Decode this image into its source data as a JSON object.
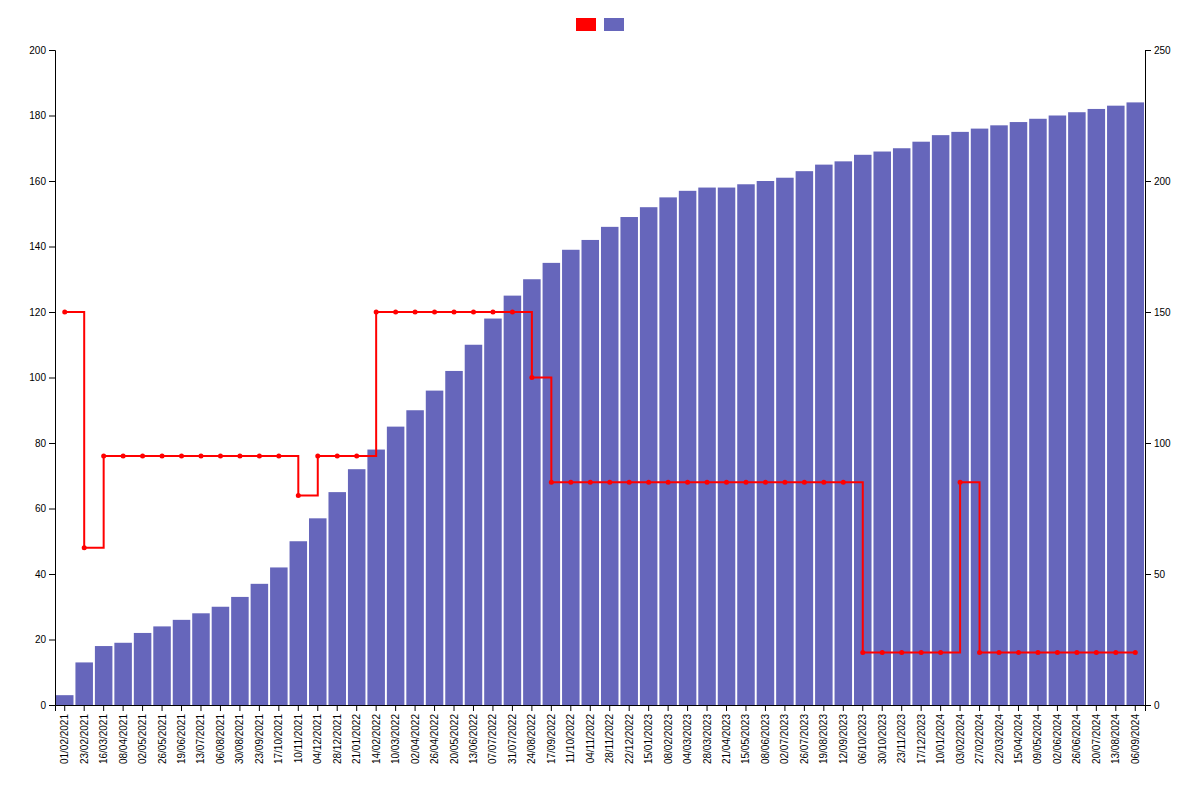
{
  "chart_data": {
    "type": "bar",
    "categories": [
      "01/02/2021",
      "23/02/2021",
      "16/03/2021",
      "08/04/2021",
      "02/05/2021",
      "26/05/2021",
      "19/06/2021",
      "13/07/2021",
      "06/08/2021",
      "30/08/2021",
      "23/09/2021",
      "17/10/2021",
      "10/11/2021",
      "04/12/2021",
      "28/12/2021",
      "21/01/2022",
      "14/02/2022",
      "10/03/2022",
      "02/04/2022",
      "26/04/2022",
      "20/05/2022",
      "13/06/2022",
      "07/07/2022",
      "31/07/2022",
      "24/08/2022",
      "17/09/2022",
      "11/10/2022",
      "04/11/2022",
      "28/11/2022",
      "22/12/2022",
      "15/01/2023",
      "08/02/2023",
      "04/03/2023",
      "28/03/2023",
      "21/04/2023",
      "15/05/2023",
      "08/06/2023",
      "02/07/2023",
      "26/07/2023",
      "19/08/2023",
      "12/09/2023",
      "06/10/2023",
      "30/10/2023",
      "23/11/2023",
      "17/12/2023",
      "10/01/2024",
      "03/02/2024",
      "27/02/2024",
      "22/03/2024",
      "15/04/2024",
      "09/05/2024",
      "02/06/2024",
      "26/06/2024",
      "20/07/2024",
      "13/08/2024",
      "06/09/2024"
    ],
    "series": [
      {
        "type": "bar",
        "color": "#6666bb",
        "values": [
          3,
          13,
          18,
          19,
          22,
          24,
          26,
          28,
          30,
          33,
          37,
          42,
          50,
          57,
          65,
          72,
          78,
          85,
          90,
          96,
          102,
          110,
          118,
          125,
          130,
          135,
          139,
          142,
          146,
          149,
          152,
          155,
          157,
          158,
          158,
          159,
          160,
          161,
          163,
          165,
          166,
          168,
          169,
          170,
          172,
          174,
          175,
          176,
          177,
          178,
          179,
          180,
          181,
          182,
          183,
          184
        ]
      },
      {
        "type": "line",
        "axis": "y2",
        "color": "#ff0000",
        "line_style": "step",
        "marker": "circle",
        "values": [
          150,
          60,
          95,
          95,
          95,
          95,
          95,
          95,
          95,
          95,
          95,
          95,
          80,
          95,
          95,
          95,
          150,
          150,
          150,
          150,
          150,
          150,
          150,
          150,
          125,
          85,
          85,
          85,
          85,
          85,
          85,
          85,
          85,
          85,
          85,
          85,
          85,
          85,
          85,
          85,
          85,
          20,
          20,
          20,
          20,
          20,
          85,
          20,
          20,
          20,
          20,
          20,
          20,
          20,
          20,
          20
        ]
      }
    ],
    "ylim": [
      0,
      200
    ],
    "yticks": [
      0,
      20,
      40,
      60,
      80,
      100,
      120,
      140,
      160,
      180,
      200
    ],
    "y2lim": [
      0,
      250
    ],
    "y2ticks": [
      0,
      50,
      100,
      150,
      200,
      250
    ],
    "grid": false,
    "legend": "top"
  }
}
